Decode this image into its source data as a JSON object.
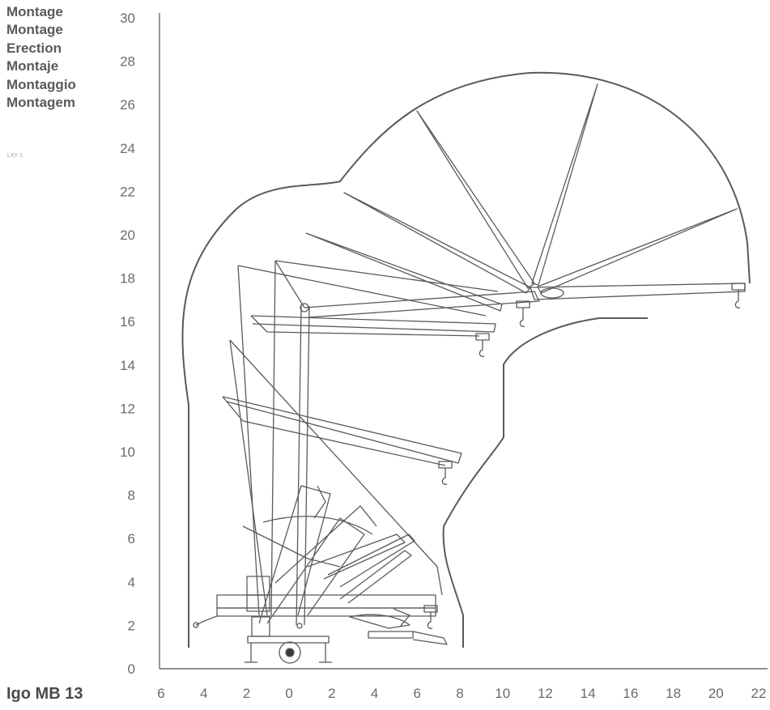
{
  "header": {
    "titles": [
      "Montage",
      "Montage",
      "Erection",
      "Montaje",
      "Montaggio",
      "Montagem"
    ],
    "code": "LXY 1"
  },
  "footer": {
    "model": "Igo MB 13"
  },
  "diagram": {
    "y_axis": {
      "ticks": [
        "0",
        "2",
        "4",
        "6",
        "8",
        "10",
        "12",
        "14",
        "16",
        "18",
        "20",
        "22",
        "24",
        "26",
        "28",
        "30"
      ]
    },
    "x_axis": {
      "ticks": [
        "6",
        "4",
        "2",
        "0",
        "2",
        "4",
        "6",
        "8",
        "10",
        "12",
        "14",
        "16",
        "18",
        "20",
        "22"
      ]
    },
    "colors": {
      "line": "#5a5a5a",
      "axis": "#6a6a6a",
      "text": "#5a5a5a"
    }
  }
}
